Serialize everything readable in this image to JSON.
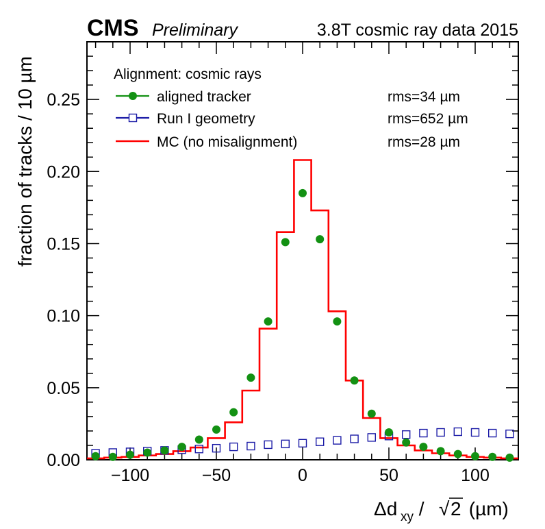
{
  "header": {
    "experiment": "CMS",
    "status": "Preliminary",
    "dataset": "3.8T cosmic ray data 2015"
  },
  "chart_data": {
    "type": "line",
    "xlabel_prefix": "Δd",
    "xlabel_subscript": "xy",
    "xlabel_mid": " / ",
    "xlabel_radical": "√",
    "xlabel_radicand": "2",
    "xlabel_unit": " (µm)",
    "ylabel": "fraction of tracks / 10 µm",
    "xlim": [
      -125,
      125
    ],
    "ylim": [
      0,
      0.29
    ],
    "xticks": [
      -100,
      -50,
      0,
      50,
      100
    ],
    "xtick_labels": [
      "−100",
      "−50",
      "0",
      "50",
      "100"
    ],
    "yticks": [
      0,
      0.05,
      0.1,
      0.15,
      0.2,
      0.25
    ],
    "ytick_labels": [
      "0.00",
      "0.05",
      "0.10",
      "0.15",
      "0.20",
      "0.25"
    ],
    "legend_title": "Alignment: cosmic rays",
    "legend_position": "top-left",
    "series": [
      {
        "name": "aligned tracker",
        "rms": "rms=34 µm",
        "style": "markers-filled-circle",
        "color": "#139113",
        "x": [
          -120,
          -110,
          -100,
          -90,
          -80,
          -70,
          -60,
          -50,
          -40,
          -30,
          -20,
          -10,
          0,
          10,
          20,
          30,
          40,
          50,
          60,
          70,
          80,
          90,
          100,
          110,
          120
        ],
        "y": [
          0.0025,
          0.002,
          0.0035,
          0.005,
          0.0065,
          0.009,
          0.014,
          0.021,
          0.033,
          0.057,
          0.096,
          0.151,
          0.185,
          0.153,
          0.096,
          0.055,
          0.032,
          0.019,
          0.012,
          0.009,
          0.006,
          0.004,
          0.0025,
          0.002,
          0.0015
        ]
      },
      {
        "name": "Run I geometry",
        "rms": "rms=652 µm",
        "style": "markers-open-square",
        "color": "#1a1aa6",
        "x": [
          -120,
          -110,
          -100,
          -90,
          -80,
          -70,
          -60,
          -50,
          -40,
          -30,
          -20,
          -10,
          0,
          10,
          20,
          30,
          40,
          50,
          60,
          70,
          80,
          90,
          100,
          110,
          120
        ],
        "y": [
          0.0045,
          0.005,
          0.0055,
          0.006,
          0.0065,
          0.007,
          0.0075,
          0.008,
          0.009,
          0.0095,
          0.0105,
          0.011,
          0.0115,
          0.0125,
          0.0135,
          0.0145,
          0.0155,
          0.0165,
          0.0175,
          0.0185,
          0.019,
          0.0195,
          0.019,
          0.0185,
          0.018
        ]
      },
      {
        "name": "MC (no misalignment)",
        "rms": "rms=28 µm",
        "style": "step-histogram",
        "color": "#ff0000",
        "bin_edges": [
          -125,
          -115,
          -105,
          -95,
          -85,
          -75,
          -65,
          -55,
          -45,
          -35,
          -25,
          -15,
          -5,
          5,
          15,
          25,
          35,
          45,
          55,
          65,
          75,
          85,
          95,
          105,
          115,
          125
        ],
        "y": [
          0.001,
          0.0015,
          0.002,
          0.003,
          0.004,
          0.006,
          0.0085,
          0.015,
          0.026,
          0.048,
          0.091,
          0.158,
          0.208,
          0.173,
          0.103,
          0.055,
          0.029,
          0.015,
          0.01,
          0.0065,
          0.0045,
          0.003,
          0.002,
          0.0015,
          0.001
        ]
      }
    ]
  }
}
